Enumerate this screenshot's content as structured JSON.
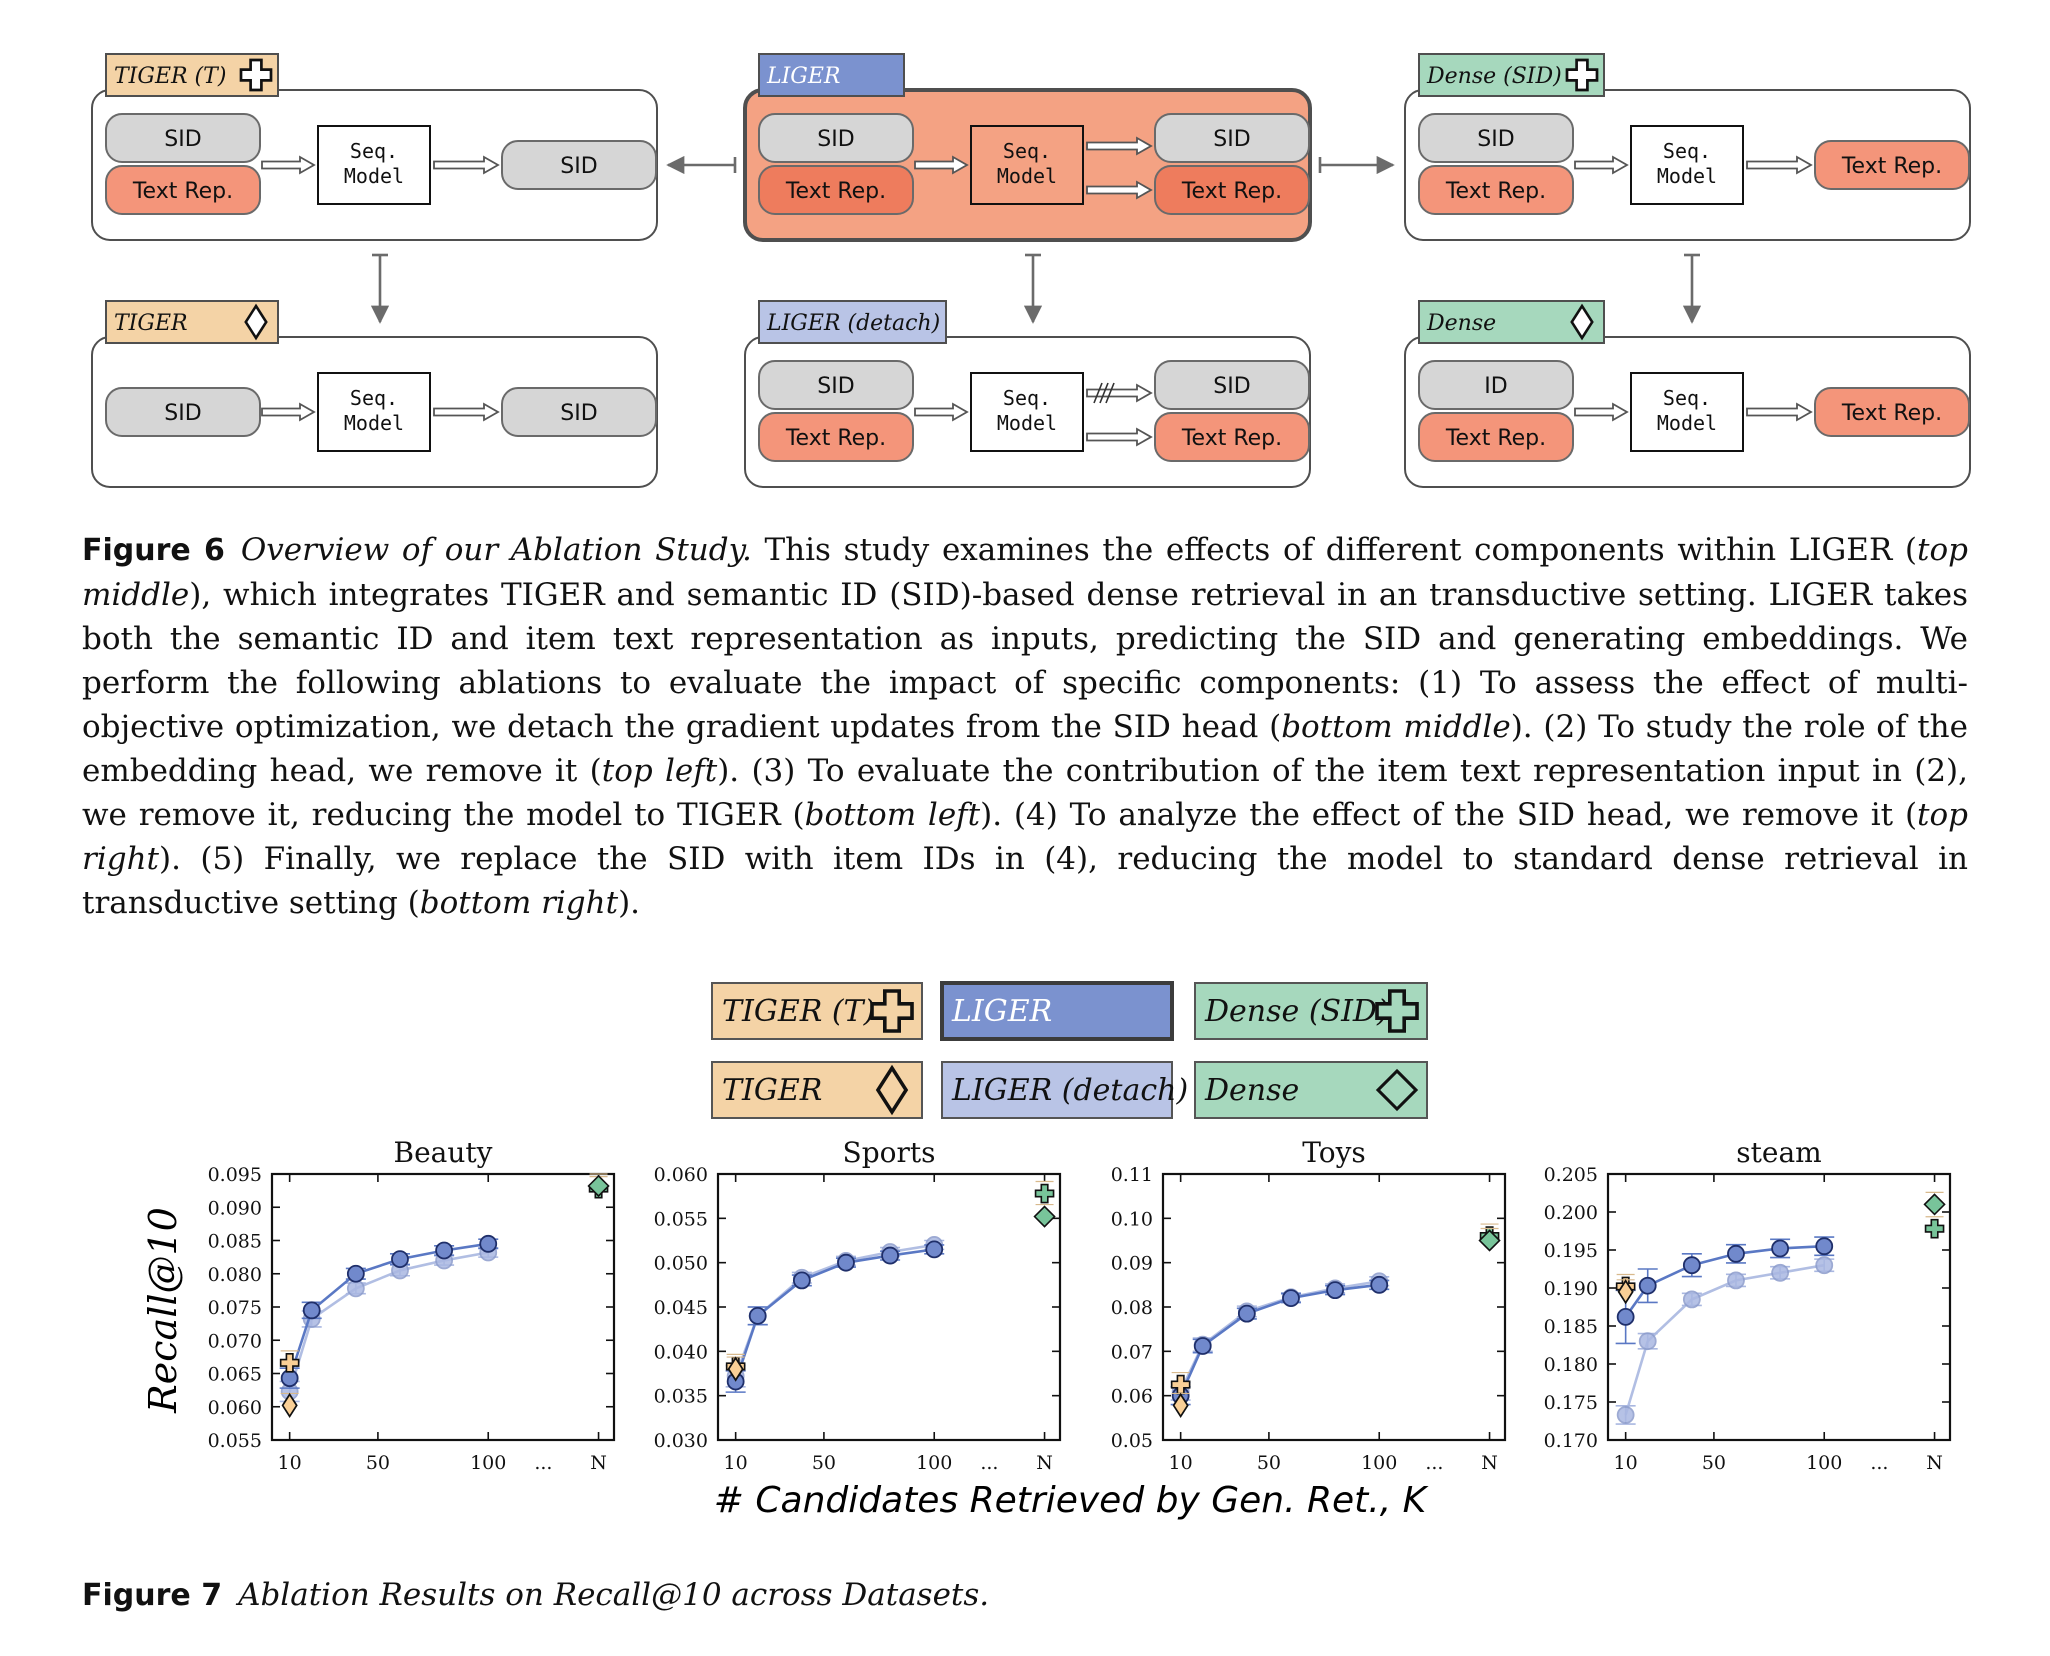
{
  "figure6": {
    "panels": {
      "tiger_t": {
        "tag": "TIGER (T)",
        "marker": "plus",
        "inputs": [
          "SID",
          "Text Rep."
        ],
        "model": "Seq.\nModel",
        "outputs": [
          "SID"
        ]
      },
      "liger": {
        "tag": "LIGER",
        "marker": "",
        "inputs": [
          "SID",
          "Text Rep."
        ],
        "model": "Seq.\nModel",
        "outputs": [
          "SID",
          "Text Rep."
        ]
      },
      "dense_sid": {
        "tag": "Dense (SID)",
        "marker": "plus",
        "inputs": [
          "SID",
          "Text Rep."
        ],
        "model": "Seq.\nModel",
        "outputs": [
          "Text Rep."
        ]
      },
      "tiger": {
        "tag": "TIGER",
        "marker": "diamond",
        "inputs": [
          "SID"
        ],
        "model": "Seq.\nModel",
        "outputs": [
          "SID"
        ]
      },
      "liger_detach": {
        "tag": "LIGER (detach)",
        "marker": "",
        "inputs": [
          "SID",
          "Text Rep."
        ],
        "model": "Seq.\nModel",
        "outputs": [
          "SID",
          "Text Rep."
        ]
      },
      "dense": {
        "tag": "Dense",
        "marker": "diamond",
        "inputs": [
          "ID",
          "Text Rep."
        ],
        "model": "Seq.\nModel",
        "outputs": [
          "Text Rep."
        ]
      }
    },
    "caption": {
      "label": "Figure 6",
      "parts": [
        {
          "t": "Overview of our Ablation Study.",
          "i": true
        },
        {
          "t": " This study examines the effects of different components within LIGER (",
          "i": false
        },
        {
          "t": "top middle",
          "i": true
        },
        {
          "t": "), which integrates TIGER and semantic ID (SID)-based dense retrieval in an transductive setting. LIGER takes both the semantic ID and item text representation as inputs, predicting the SID and generating embeddings. We perform the following ablations to evaluate the impact of specific components: (1) To assess the effect of multi-objective optimization, we detach the gradient updates from the SID head (",
          "i": false
        },
        {
          "t": "bottom middle",
          "i": true
        },
        {
          "t": "). (2) To study the role of the embedding head, we remove it (",
          "i": false
        },
        {
          "t": "top left",
          "i": true
        },
        {
          "t": "). (3) To evaluate the contribution of the item text representation input in (2), we remove it, reducing the model to TIGER (",
          "i": false
        },
        {
          "t": "bottom left",
          "i": true
        },
        {
          "t": "). (4) To analyze the effect of the SID head, we remove it (",
          "i": false
        },
        {
          "t": "top right",
          "i": true
        },
        {
          "t": "). (5) Finally, we replace the SID with item IDs in (4), reducing the model to standard dense retrieval in transductive setting (",
          "i": false
        },
        {
          "t": "bottom right",
          "i": true
        },
        {
          "t": ").",
          "i": false
        }
      ]
    }
  },
  "figure7": {
    "legend": [
      {
        "label": "TIGER (T)",
        "marker": "plus",
        "fill": "#f4d3a6"
      },
      {
        "label": "LIGER",
        "marker": "",
        "fill": "#7b92cf"
      },
      {
        "label": "Dense (SID)",
        "marker": "plus",
        "fill": "#a6d8bd"
      },
      {
        "label": "TIGER",
        "marker": "diamond",
        "fill": "#f4d3a6"
      },
      {
        "label": "LIGER (detach)",
        "marker": "",
        "fill": "#b9c4e6"
      },
      {
        "label": "Dense",
        "marker": "diamond",
        "fill": "#a6d8bd"
      }
    ],
    "ylabel": "Recall@10",
    "xlabel": "# Candidates Retrieved by Gen. Ret., K",
    "caption": {
      "label": "Figure 7",
      "text": "Ablation Results on Recall@10 across Datasets."
    }
  },
  "chart_data": [
    {
      "type": "line",
      "title": "Beauty",
      "ylabel": "Recall@10",
      "xlabel": "# Candidates Retrieved by Gen. Ret., K",
      "ylim": [
        0.055,
        0.095
      ],
      "yticks": [
        "0.055",
        "0.060",
        "0.065",
        "0.070",
        "0.075",
        "0.080",
        "0.085",
        "0.090",
        "0.095"
      ],
      "xticks": [
        {
          "v": 10,
          "l": "10"
        },
        {
          "v": 50,
          "l": "50"
        },
        {
          "v": 100,
          "l": "100"
        },
        {
          "v": 125,
          "l": "..."
        },
        {
          "v": 150,
          "l": "N"
        }
      ],
      "series": [
        {
          "name": "LIGER",
          "x": [
            10,
            20,
            40,
            60,
            80,
            100
          ],
          "y": [
            0.0643,
            0.0745,
            0.08,
            0.0822,
            0.0835,
            0.0845
          ],
          "err": [
            0.0015,
            0.0012,
            0.0008,
            0.0008,
            0.0007,
            0.0007
          ]
        },
        {
          "name": "LIGER (detach)",
          "x": [
            10,
            20,
            40,
            60,
            80,
            100
          ],
          "y": [
            0.0623,
            0.0732,
            0.0778,
            0.0805,
            0.082,
            0.0832
          ],
          "err": [
            0.0015,
            0.0012,
            0.0008,
            0.0008,
            0.0007,
            0.0007
          ]
        }
      ],
      "markers": [
        {
          "name": "TIGER (T)",
          "x": 10,
          "y": 0.0666
        },
        {
          "name": "TIGER",
          "x": 10,
          "y": 0.0602
        },
        {
          "name": "Dense (SID)",
          "x": 150,
          "y": 0.0928
        },
        {
          "name": "Dense",
          "x": 150,
          "y": 0.0932
        }
      ]
    },
    {
      "type": "line",
      "title": "Sports",
      "ylim": [
        0.03,
        0.06
      ],
      "yticks": [
        "0.030",
        "0.035",
        "0.040",
        "0.045",
        "0.050",
        "0.055",
        "0.060"
      ],
      "xticks": [
        {
          "v": 10,
          "l": "10"
        },
        {
          "v": 50,
          "l": "50"
        },
        {
          "v": 100,
          "l": "100"
        },
        {
          "v": 125,
          "l": "..."
        },
        {
          "v": 150,
          "l": "N"
        }
      ],
      "series": [
        {
          "name": "LIGER",
          "x": [
            10,
            20,
            40,
            60,
            80,
            100
          ],
          "y": [
            0.0366,
            0.044,
            0.048,
            0.05,
            0.0508,
            0.0515
          ],
          "err": [
            0.0012,
            0.001,
            0.0006,
            0.0005,
            0.0005,
            0.0005
          ]
        },
        {
          "name": "LIGER (detach)",
          "x": [
            10,
            20,
            40,
            60,
            80,
            100
          ],
          "y": [
            0.0372,
            0.044,
            0.0483,
            0.0502,
            0.0512,
            0.052
          ],
          "err": [
            0.0012,
            0.001,
            0.0006,
            0.0005,
            0.0005,
            0.0005
          ]
        }
      ],
      "markers": [
        {
          "name": "TIGER (T)",
          "x": 10,
          "y": 0.0383
        },
        {
          "name": "TIGER",
          "x": 10,
          "y": 0.038
        },
        {
          "name": "Dense (SID)",
          "x": 150,
          "y": 0.0578
        },
        {
          "name": "Dense",
          "x": 150,
          "y": 0.0552
        }
      ]
    },
    {
      "type": "line",
      "title": "Toys",
      "ylim": [
        0.05,
        0.11
      ],
      "yticks": [
        "0.05",
        "0.06",
        "0.07",
        "0.08",
        "0.09",
        "0.10",
        "0.11"
      ],
      "xticks": [
        {
          "v": 10,
          "l": "10"
        },
        {
          "v": 50,
          "l": "50"
        },
        {
          "v": 100,
          "l": "100"
        },
        {
          "v": 125,
          "l": "..."
        },
        {
          "v": 150,
          "l": "N"
        }
      ],
      "series": [
        {
          "name": "LIGER",
          "x": [
            10,
            20,
            40,
            60,
            80,
            100
          ],
          "y": [
            0.06,
            0.0712,
            0.0785,
            0.082,
            0.0838,
            0.085
          ],
          "err": [
            0.002,
            0.0015,
            0.0012,
            0.001,
            0.001,
            0.001
          ]
        },
        {
          "name": "LIGER (detach)",
          "x": [
            10,
            20,
            40,
            60,
            80,
            100
          ],
          "y": [
            0.061,
            0.0715,
            0.079,
            0.0822,
            0.0842,
            0.0858
          ],
          "err": [
            0.002,
            0.0015,
            0.0012,
            0.001,
            0.001,
            0.001
          ]
        }
      ],
      "markers": [
        {
          "name": "TIGER (T)",
          "x": 10,
          "y": 0.0625
        },
        {
          "name": "TIGER",
          "x": 10,
          "y": 0.0578
        },
        {
          "name": "Dense (SID)",
          "x": 150,
          "y": 0.096
        },
        {
          "name": "Dense",
          "x": 150,
          "y": 0.095
        }
      ]
    },
    {
      "type": "line",
      "title": "steam",
      "ylim": [
        0.17,
        0.205
      ],
      "yticks": [
        "0.170",
        "0.175",
        "0.180",
        "0.185",
        "0.190",
        "0.195",
        "0.200",
        "0.205"
      ],
      "xticks": [
        {
          "v": 10,
          "l": "10"
        },
        {
          "v": 50,
          "l": "50"
        },
        {
          "v": 100,
          "l": "100"
        },
        {
          "v": 125,
          "l": "..."
        },
        {
          "v": 150,
          "l": "N"
        }
      ],
      "series": [
        {
          "name": "LIGER",
          "x": [
            10,
            20,
            40,
            60,
            80,
            100
          ],
          "y": [
            0.1862,
            0.1903,
            0.193,
            0.1945,
            0.1952,
            0.1955
          ],
          "err": [
            0.0035,
            0.0022,
            0.0015,
            0.0012,
            0.0012,
            0.0012
          ]
        },
        {
          "name": "LIGER (detach)",
          "x": [
            10,
            20,
            40,
            60,
            80,
            100
          ],
          "y": [
            0.1733,
            0.183,
            0.1885,
            0.191,
            0.192,
            0.193
          ],
          "err": [
            0.0012,
            0.001,
            0.0008,
            0.0008,
            0.0008,
            0.0008
          ]
        }
      ],
      "markers": [
        {
          "name": "TIGER (T)",
          "x": 10,
          "y": 0.1902
        },
        {
          "name": "TIGER",
          "x": 10,
          "y": 0.1895
        },
        {
          "name": "Dense (SID)",
          "x": 150,
          "y": 0.1978
        },
        {
          "name": "Dense",
          "x": 150,
          "y": 0.201
        }
      ]
    }
  ]
}
